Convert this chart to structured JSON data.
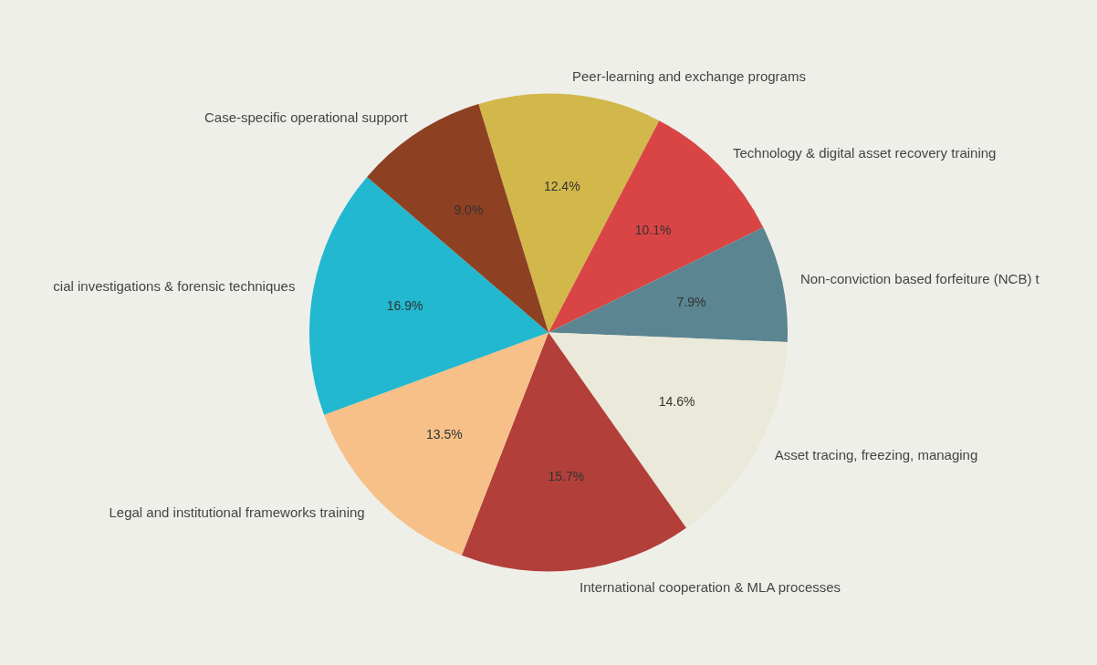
{
  "chart_data": {
    "type": "pie",
    "categories": [
      "Peer-learning and exchange programs",
      "Technology & digital asset recovery training",
      "Non-conviction based forfeiture (NCB) t",
      "Asset tracing, freezing, managing",
      "International cooperation & MLA processes",
      "Legal and institutional frameworks training",
      "cial investigations & forensic techniques",
      "Case-specific operational support"
    ],
    "values": [
      12.4,
      10.1,
      7.9,
      14.6,
      15.7,
      13.5,
      16.9,
      9.0
    ],
    "value_labels": [
      "12.4%",
      "10.1%",
      "7.9%",
      "14.6%",
      "15.7%",
      "13.5%",
      "16.9%",
      "9.0%"
    ],
    "colors": [
      "#d2b84b",
      "#d94545",
      "#5b8590",
      "#ebe9d9",
      "#b23f3a",
      "#f6c088",
      "#22b8cf",
      "#8e4022"
    ]
  }
}
